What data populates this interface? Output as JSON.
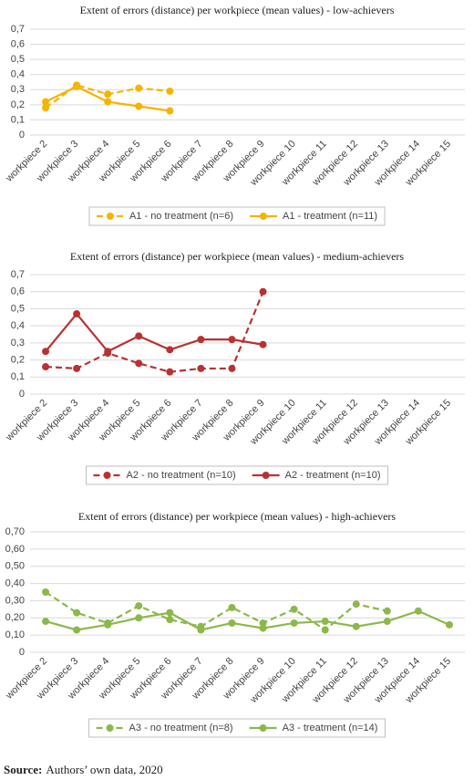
{
  "chart_data": [
    {
      "type": "line",
      "title": "Extent of errors (distance) per workpiece (mean values) - low-achievers",
      "categories": [
        "workpiece 2",
        "workpiece 3",
        "workpiece 4",
        "workpiece 5",
        "workpiece 6",
        "workpiece 7",
        "workpiece 8",
        "workpiece 9",
        "workpiece 10",
        "workpiece 11",
        "workpiece 12",
        "workpiece 13",
        "workpiece 14",
        "workpiece 15"
      ],
      "ylim": [
        0,
        0.7
      ],
      "yticks": [
        0,
        {
          "value": 0.1,
          "label": "0,1"
        },
        {
          "value": 0.2,
          "label": "0,2"
        },
        {
          "value": 0.3,
          "label": "0,3"
        },
        {
          "value": 0.4,
          "label": "0,4"
        },
        {
          "value": 0.5,
          "label": "0,5"
        },
        {
          "value": 0.6,
          "label": "0,6"
        },
        {
          "value": 0.7,
          "label": "0,7"
        }
      ],
      "grid": true,
      "legend": "bottom",
      "series": [
        {
          "name": "A1 - no treatment (n=6)",
          "color": "#f5b400",
          "line_style": "dashed",
          "values": [
            0.18,
            0.33,
            0.27,
            0.31,
            0.29,
            null,
            null,
            null,
            null,
            null,
            null,
            null,
            null,
            null
          ]
        },
        {
          "name": "A1 - treatment (n=11)",
          "color": "#f5b400",
          "line_style": "solid",
          "values": [
            0.22,
            0.32,
            0.22,
            0.19,
            0.16,
            null,
            null,
            null,
            null,
            null,
            null,
            null,
            null,
            null
          ]
        }
      ]
    },
    {
      "type": "line",
      "title": "Extent of errors (distance) per workpiece (mean values) - medium-achievers",
      "categories": [
        "workpiece 2",
        "workpiece 3",
        "workpiece 4",
        "workpiece 5",
        "workpiece 6",
        "workpiece 7",
        "workpiece 8",
        "workpiece 9",
        "workpiece 10",
        "workpiece 11",
        "workpiece 12",
        "workpiece 13",
        "workpiece 14",
        "workpiece 15"
      ],
      "ylim": [
        0,
        0.7
      ],
      "yticks": [
        0,
        {
          "value": 0.1,
          "label": "0,1"
        },
        {
          "value": 0.2,
          "label": "0,2"
        },
        {
          "value": 0.3,
          "label": "0,3"
        },
        {
          "value": 0.4,
          "label": "0,4"
        },
        {
          "value": 0.5,
          "label": "0,5"
        },
        {
          "value": 0.6,
          "label": "0,6"
        },
        {
          "value": 0.7,
          "label": "0,7"
        }
      ],
      "grid": true,
      "legend": "bottom",
      "series": [
        {
          "name": "A2 - no treatment (n=10)",
          "color": "#b83232",
          "line_style": "dashed",
          "values": [
            0.16,
            0.15,
            0.24,
            0.18,
            0.13,
            0.15,
            0.15,
            0.6,
            null,
            null,
            null,
            null,
            null,
            null
          ]
        },
        {
          "name": "A2 - treatment (n=10)",
          "color": "#b83232",
          "line_style": "solid",
          "values": [
            0.25,
            0.47,
            0.25,
            0.34,
            0.26,
            0.32,
            0.32,
            0.29,
            null,
            null,
            null,
            null,
            null,
            null
          ]
        }
      ]
    },
    {
      "type": "line",
      "title": "Extent of errors (distance) per workpiece (mean values) - high-achievers",
      "categories": [
        "workpiece 2",
        "workpiece 3",
        "workpiece 4",
        "workpiece 5",
        "workpiece 6",
        "workpiece 7",
        "workpiece 8",
        "workpiece 9",
        "workpiece 10",
        "workpiece 11",
        "workpiece 12",
        "workpiece 13",
        "workpiece 14",
        "workpiece 15"
      ],
      "ylim": [
        0,
        0.7
      ],
      "yticks": [
        0,
        {
          "value": 0.1,
          "label": "0,10"
        },
        {
          "value": 0.2,
          "label": "0,20"
        },
        {
          "value": 0.3,
          "label": "0,30"
        },
        {
          "value": 0.4,
          "label": "0,40"
        },
        {
          "value": 0.5,
          "label": "0,50"
        },
        {
          "value": 0.6,
          "label": "0,60"
        },
        {
          "value": 0.7,
          "label": "0,70"
        }
      ],
      "grid": true,
      "legend": "bottom",
      "series": [
        {
          "name": "A3 - no treatment (n=8)",
          "color": "#8cb84a",
          "line_style": "dashed",
          "values": [
            0.35,
            0.23,
            0.17,
            0.27,
            0.19,
            0.15,
            0.26,
            0.17,
            0.25,
            0.13,
            0.28,
            0.24,
            null,
            null
          ]
        },
        {
          "name": "A3 - treatment (n=14)",
          "color": "#8cb84a",
          "line_style": "solid",
          "values": [
            0.18,
            0.13,
            0.16,
            0.2,
            0.23,
            0.13,
            0.17,
            0.14,
            0.17,
            0.18,
            0.15,
            0.18,
            0.24,
            0.16
          ]
        }
      ]
    }
  ],
  "source": {
    "label": "Source:",
    "text": "Authors’ own data, 2020"
  }
}
